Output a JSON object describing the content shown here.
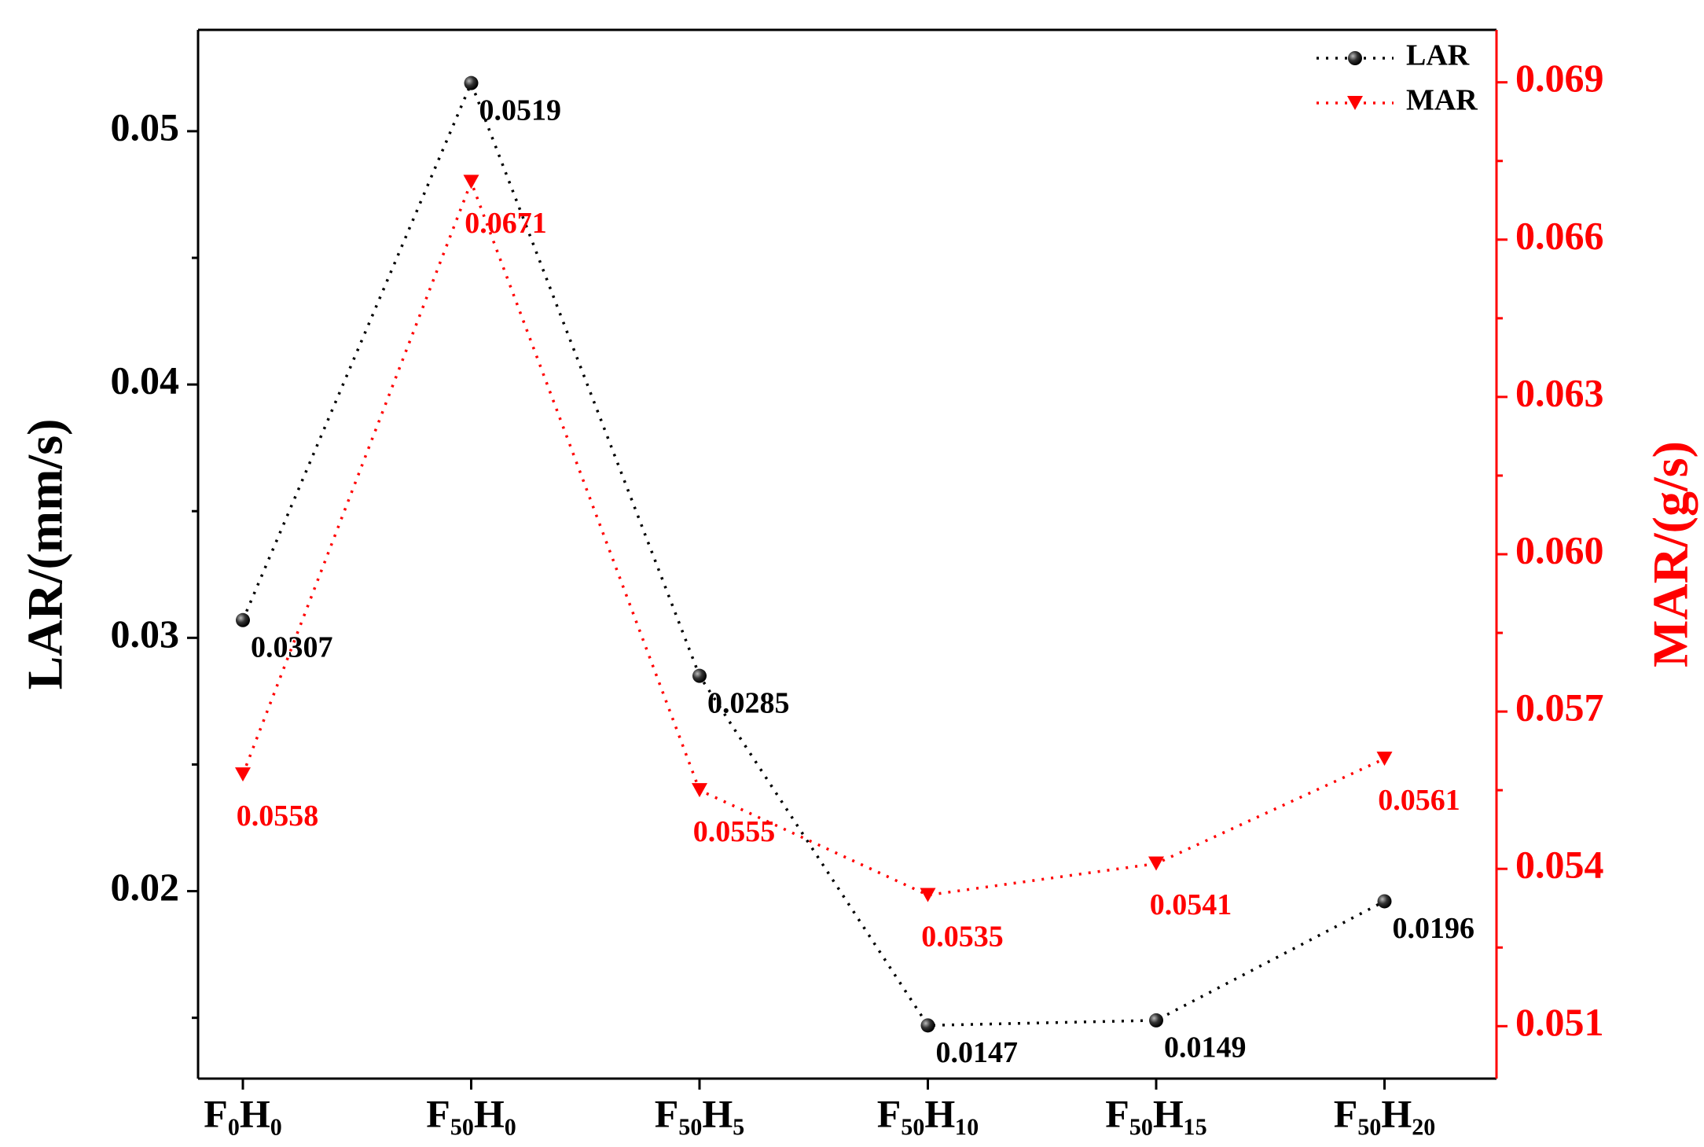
{
  "chart_data": {
    "type": "line",
    "categories": [
      "F₀H₀",
      "F₅₀H₀",
      "F₅₀H₅",
      "F₅₀H₁₀",
      "F₅₀H₁₅",
      "F₅₀H₂₀"
    ],
    "y_label": "LAR/(mm/s)",
    "y2_label": "MAR/(g/s)",
    "ylim": [
      0.0126,
      0.054
    ],
    "yticks": [
      0.02,
      0.03,
      0.04,
      0.05
    ],
    "y2lim": [
      0.05,
      0.07
    ],
    "y2ticks": [
      0.051,
      0.054,
      0.057,
      {
        "value": 0.06,
        "label": "0.060"
      },
      0.063,
      0.066,
      0.069
    ],
    "y2color": "#ff0000",
    "legend": "upper right",
    "series": [
      {
        "name": "LAR",
        "color": "#000000",
        "marker": "circle",
        "values": [
          0.0307,
          0.0519,
          0.0285,
          0.0147,
          0.0149,
          0.0196
        ]
      },
      {
        "name": "MAR",
        "color": "#ff0000",
        "marker": "triangle-down",
        "axis": "y2",
        "values": [
          0.0558,
          0.0671,
          0.0555,
          0.0535,
          0.0541,
          0.0561
        ]
      }
    ]
  }
}
